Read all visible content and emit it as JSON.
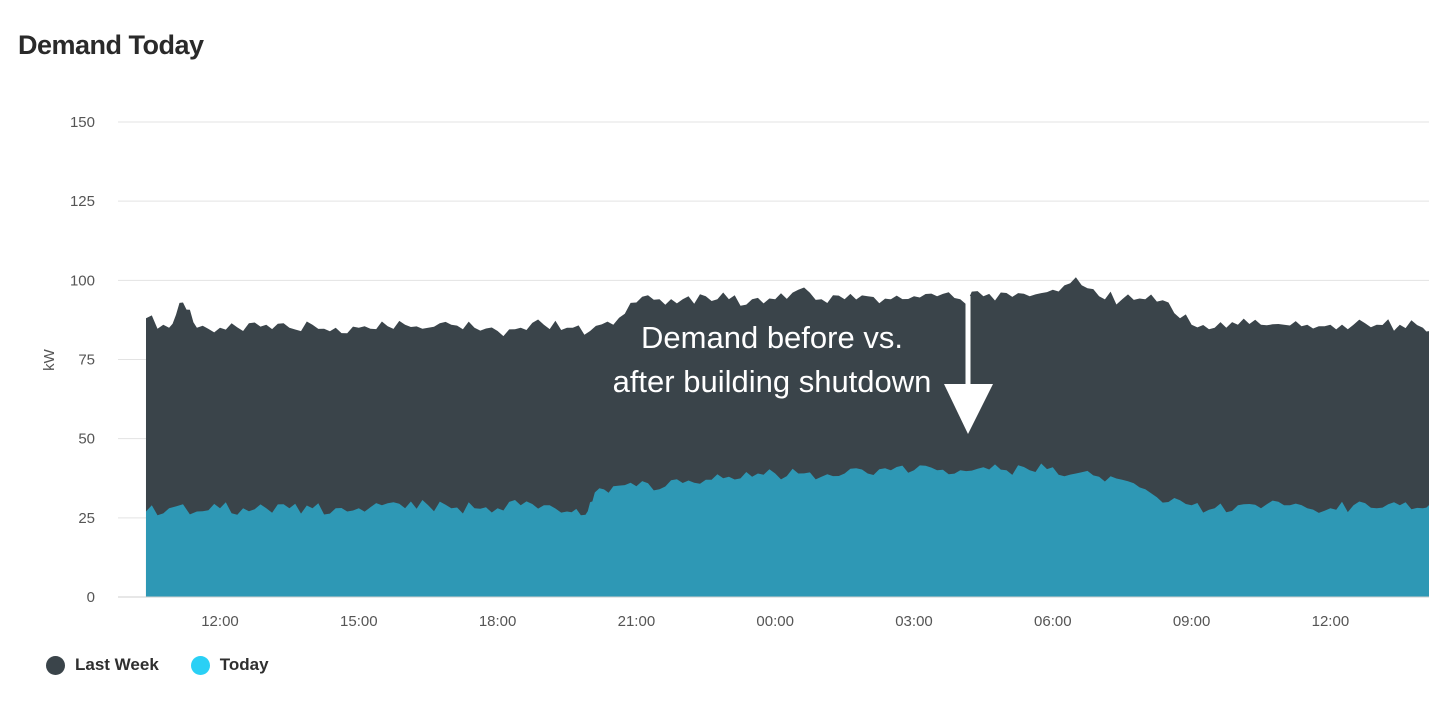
{
  "title": "Demand Today",
  "chart_data": {
    "type": "area",
    "title": "Demand Today",
    "xlabel": "",
    "ylabel": "kW",
    "ylim": [
      0,
      150
    ],
    "yticks": [
      "0",
      "25",
      "50",
      "75",
      "100",
      "125",
      "150"
    ],
    "xticks": [
      "12:00",
      "15:00",
      "18:00",
      "21:00",
      "00:00",
      "03:00",
      "06:00",
      "09:00",
      "12:00"
    ],
    "x_start_hour": 10.4,
    "x_end_hour": 38.3,
    "grid": true,
    "legend_position": "bottom-left",
    "series": [
      {
        "name": "Last Week",
        "color": "#3a444a",
        "points": [
          [
            10.4,
            88
          ],
          [
            10.9,
            85
          ],
          [
            11.2,
            93
          ],
          [
            11.5,
            85
          ],
          [
            12.0,
            85
          ],
          [
            12.5,
            84
          ],
          [
            13.0,
            86
          ],
          [
            13.5,
            85
          ],
          [
            14.0,
            86
          ],
          [
            14.5,
            85
          ],
          [
            15.0,
            85
          ],
          [
            15.5,
            87
          ],
          [
            16.0,
            86
          ],
          [
            16.5,
            85
          ],
          [
            17.0,
            86
          ],
          [
            17.5,
            85
          ],
          [
            18.0,
            84
          ],
          [
            18.5,
            85
          ],
          [
            19.0,
            86
          ],
          [
            19.5,
            85
          ],
          [
            20.0,
            84
          ],
          [
            20.5,
            86
          ],
          [
            21.0,
            93
          ],
          [
            21.5,
            94
          ],
          [
            22.0,
            94
          ],
          [
            22.5,
            95
          ],
          [
            23.0,
            94
          ],
          [
            23.5,
            94
          ],
          [
            24.0,
            94
          ],
          [
            24.5,
            97
          ],
          [
            25.0,
            94
          ],
          [
            25.5,
            94
          ],
          [
            26.0,
            95
          ],
          [
            26.5,
            94
          ],
          [
            27.0,
            95
          ],
          [
            27.5,
            95
          ],
          [
            28.0,
            94
          ],
          [
            28.5,
            95
          ],
          [
            29.0,
            96
          ],
          [
            29.5,
            95
          ],
          [
            30.0,
            97
          ],
          [
            30.5,
            101
          ],
          [
            31.0,
            95
          ],
          [
            31.5,
            94
          ],
          [
            32.0,
            94
          ],
          [
            32.5,
            93
          ],
          [
            33.0,
            86
          ],
          [
            33.5,
            85
          ],
          [
            34.0,
            86
          ],
          [
            34.5,
            86
          ],
          [
            35.0,
            86
          ],
          [
            35.5,
            86
          ],
          [
            36.0,
            86
          ],
          [
            36.5,
            86
          ],
          [
            37.0,
            86
          ],
          [
            37.5,
            86
          ],
          [
            38.0,
            85
          ],
          [
            38.3,
            85
          ]
        ]
      },
      {
        "name": "Today",
        "color": "#2e98b5",
        "points": [
          [
            10.4,
            27
          ],
          [
            10.9,
            28
          ],
          [
            11.5,
            27
          ],
          [
            12.0,
            28
          ],
          [
            12.5,
            28
          ],
          [
            13.0,
            28
          ],
          [
            13.5,
            28
          ],
          [
            14.0,
            28
          ],
          [
            14.5,
            28
          ],
          [
            15.0,
            28
          ],
          [
            15.5,
            29
          ],
          [
            16.0,
            28
          ],
          [
            16.5,
            29
          ],
          [
            17.0,
            28
          ],
          [
            17.5,
            28
          ],
          [
            18.0,
            28
          ],
          [
            18.5,
            29
          ],
          [
            19.0,
            29
          ],
          [
            19.5,
            27
          ],
          [
            19.9,
            26
          ],
          [
            20.1,
            33
          ],
          [
            20.5,
            35
          ],
          [
            21.0,
            35
          ],
          [
            21.5,
            34
          ],
          [
            22.0,
            36
          ],
          [
            22.5,
            37
          ],
          [
            23.0,
            38
          ],
          [
            23.5,
            38
          ],
          [
            24.0,
            39
          ],
          [
            24.5,
            39
          ],
          [
            25.0,
            38
          ],
          [
            25.5,
            39
          ],
          [
            26.0,
            39
          ],
          [
            26.5,
            40
          ],
          [
            27.0,
            40
          ],
          [
            27.5,
            40
          ],
          [
            28.0,
            40
          ],
          [
            28.5,
            41
          ],
          [
            29.0,
            40
          ],
          [
            29.5,
            40
          ],
          [
            30.0,
            41
          ],
          [
            30.5,
            39
          ],
          [
            31.0,
            38
          ],
          [
            31.5,
            37
          ],
          [
            32.0,
            34
          ],
          [
            32.5,
            30
          ],
          [
            33.0,
            29
          ],
          [
            33.5,
            28
          ],
          [
            34.0,
            29
          ],
          [
            34.5,
            28
          ],
          [
            35.0,
            29
          ],
          [
            35.5,
            28
          ],
          [
            36.0,
            28
          ],
          [
            36.5,
            29
          ],
          [
            37.0,
            28
          ],
          [
            37.5,
            29
          ],
          [
            38.0,
            28
          ],
          [
            38.3,
            27
          ]
        ]
      }
    ],
    "annotation": "Demand before vs. after building shutdown"
  },
  "legend": [
    {
      "label": "Last Week",
      "color": "#3a444a"
    },
    {
      "label": "Today",
      "color": "#2ad0f5"
    }
  ]
}
